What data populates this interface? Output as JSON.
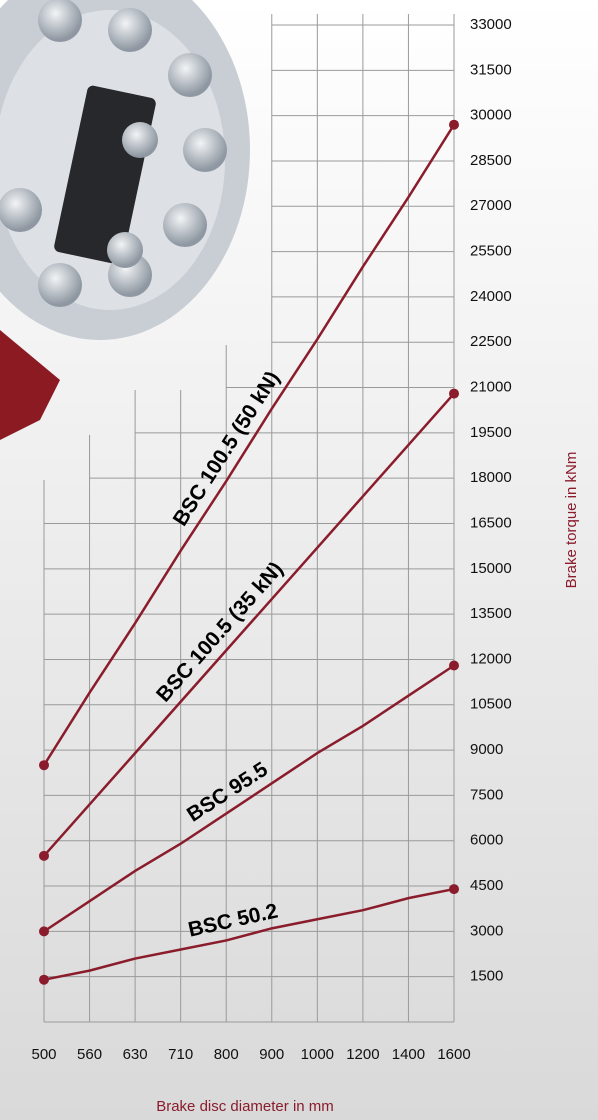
{
  "chart_data": {
    "type": "line",
    "x_label": "Brake disc diameter in mm",
    "y_label": "Brake torque in kNm",
    "categories": [
      "500",
      "560",
      "630",
      "710",
      "800",
      "900",
      "1000",
      "1200",
      "1400",
      "1600"
    ],
    "ylim": [
      0,
      33000
    ],
    "yticks": [
      1500,
      3000,
      4500,
      6000,
      7500,
      9000,
      10500,
      12000,
      13500,
      15000,
      16500,
      18000,
      19500,
      21000,
      22500,
      24000,
      25500,
      27000,
      28500,
      30000,
      31500,
      33000
    ],
    "grid": true,
    "series": [
      {
        "name": "BSC 100.5 (50 kN)",
        "color": "#8a1c2c",
        "values": [
          8500,
          10900,
          13200,
          15600,
          17900,
          20300,
          22600,
          25000,
          27300,
          29700
        ]
      },
      {
        "name": "BSC 100.5 (35 kN)",
        "color": "#8a1c2c",
        "values": [
          5500,
          7200,
          8900,
          10600,
          12300,
          14000,
          15700,
          17400,
          19100,
          20800
        ]
      },
      {
        "name": "BSC 95.5",
        "color": "#8a1c2c",
        "values": [
          3000,
          4000,
          5000,
          5900,
          6900,
          7900,
          8900,
          9800,
          10800,
          11800
        ]
      },
      {
        "name": "BSC 50.2",
        "color": "#8a1c2c",
        "values": [
          1400,
          1700,
          2100,
          2400,
          2700,
          3100,
          3400,
          3700,
          4100,
          4400
        ]
      }
    ]
  }
}
